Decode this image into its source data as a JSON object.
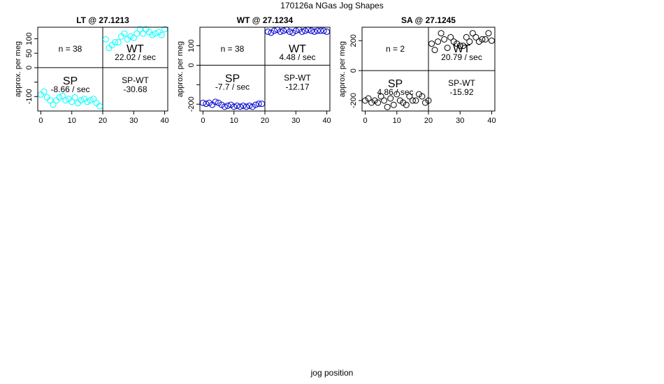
{
  "figure": {
    "title": "170126a   NGas Jog Shapes",
    "xlabel": "jog position"
  },
  "chart_data": [
    {
      "type": "scatter",
      "title": "LT @ 27.1213",
      "ylabel": "approx. per meg",
      "xlim": [
        -1,
        41
      ],
      "ylim": [
        -150,
        140
      ],
      "xticks": [
        0,
        10,
        20,
        30,
        40
      ],
      "yticks": [
        -100,
        -50,
        0,
        50,
        100
      ],
      "ytick_labels": [
        "-100",
        "",
        "0",
        "50",
        "100"
      ],
      "color": "#00ffff",
      "quadrants": {
        "top_left": "n = 38",
        "top_right_title": "WT",
        "top_right_rate": "22.02 / sec",
        "bottom_left_title": "SP",
        "bottom_left_rate": "-8.66 / sec",
        "bottom_right_title": "SP-WT",
        "bottom_right_value": "-30.68"
      },
      "x": [
        0,
        1,
        2,
        3,
        4,
        5,
        6,
        7,
        8,
        9,
        10,
        11,
        12,
        13,
        14,
        15,
        16,
        17,
        18,
        19,
        21,
        22,
        23,
        24,
        25,
        26,
        27,
        28,
        29,
        30,
        31,
        32,
        33,
        34,
        35,
        36,
        37,
        38,
        39,
        40
      ],
      "y": [
        -93,
        -83,
        -103,
        -113,
        -128,
        -113,
        -103,
        -98,
        -113,
        -108,
        -118,
        -103,
        -123,
        -113,
        -108,
        -118,
        -113,
        -108,
        -123,
        -133,
        98,
        68,
        78,
        88,
        88,
        108,
        118,
        98,
        108,
        103,
        118,
        133,
        118,
        133,
        123,
        113,
        118,
        123,
        113,
        133
      ]
    },
    {
      "type": "scatter",
      "title": "WT @ 27.1234",
      "ylabel": "approx. per meg",
      "xlim": [
        -1,
        41
      ],
      "ylim": [
        -235,
        195
      ],
      "xticks": [
        0,
        10,
        20,
        30,
        40
      ],
      "yticks": [
        -200,
        -100,
        0,
        100
      ],
      "ytick_labels": [
        "-200",
        "",
        "0",
        "100"
      ],
      "color": "#0000cc",
      "quadrants": {
        "top_left": "n = 38",
        "top_right_title": "WT",
        "top_right_rate": "4.48 / sec",
        "bottom_left_title": "SP",
        "bottom_left_rate": "-7.7 / sec",
        "bottom_right_title": "SP-WT",
        "bottom_right_value": "-12.17"
      },
      "x": [
        0,
        1,
        2,
        3,
        4,
        5,
        6,
        7,
        8,
        9,
        10,
        11,
        12,
        13,
        14,
        15,
        16,
        17,
        18,
        19,
        21,
        22,
        23,
        24,
        25,
        26,
        27,
        28,
        29,
        30,
        31,
        32,
        33,
        34,
        35,
        36,
        37,
        38,
        39,
        40
      ],
      "y": [
        -193,
        -198,
        -193,
        -203,
        -188,
        -193,
        -203,
        -213,
        -208,
        -203,
        -213,
        -208,
        -213,
        -208,
        -213,
        -208,
        -213,
        -203,
        -198,
        -198,
        172,
        167,
        177,
        182,
        172,
        177,
        182,
        172,
        167,
        177,
        182,
        172,
        177,
        182,
        177,
        172,
        177,
        177,
        177,
        172
      ]
    },
    {
      "type": "scatter",
      "title": "SA @ 27.1245",
      "ylabel": "approx. per meg",
      "xlim": [
        -1,
        41
      ],
      "ylim": [
        -270,
        290
      ],
      "xticks": [
        0,
        10,
        20,
        30,
        40
      ],
      "yticks": [
        -200,
        0,
        200
      ],
      "ytick_labels": [
        "-200",
        "0",
        "200"
      ],
      "color": "#000000",
      "quadrants": {
        "top_left": "n = 2",
        "top_right_title": "WT",
        "top_right_rate": "20.79 / sec",
        "bottom_left_title": "SP",
        "bottom_left_rate": "4.86 / sec",
        "bottom_right_title": "SP-WT",
        "bottom_right_value": "-15.92"
      },
      "x": [
        0,
        1,
        2,
        3,
        4,
        5,
        6,
        7,
        8,
        9,
        10,
        11,
        12,
        13,
        14,
        15,
        16,
        17,
        18,
        19,
        20,
        21,
        22,
        23,
        24,
        25,
        26,
        27,
        28,
        29,
        30,
        31,
        32,
        33,
        34,
        35,
        36,
        37,
        38,
        39,
        40
      ],
      "y": [
        -200,
        -186,
        -214,
        -200,
        -214,
        -172,
        -200,
        -243,
        -186,
        -229,
        -158,
        -200,
        -214,
        -229,
        -172,
        -200,
        -200,
        -158,
        -172,
        -214,
        -200,
        180,
        138,
        194,
        250,
        209,
        152,
        223,
        194,
        180,
        166,
        166,
        223,
        194,
        250,
        223,
        194,
        209,
        209,
        250,
        200
      ]
    }
  ]
}
